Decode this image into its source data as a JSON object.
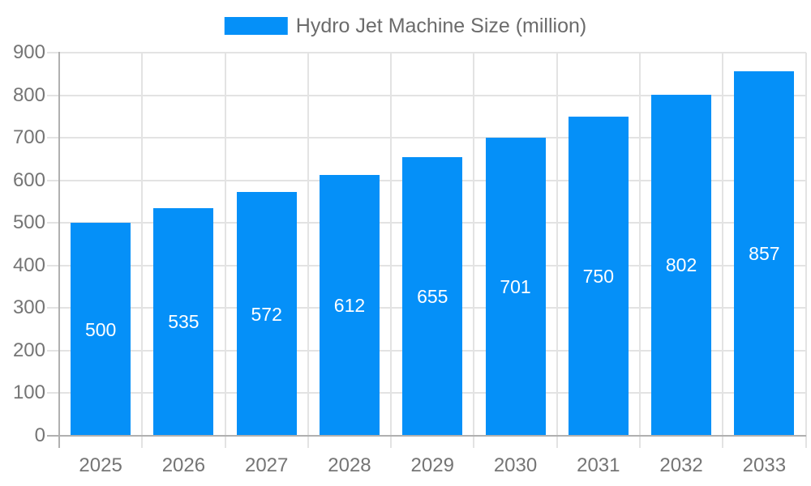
{
  "legend": {
    "label": "Hydro Jet Machine Size (million)"
  },
  "chart_data": {
    "type": "bar",
    "title": "Hydro Jet Machine Size (million)",
    "series_name": "Hydro Jet Machine Size (million)",
    "categories": [
      "2025",
      "2026",
      "2027",
      "2028",
      "2029",
      "2030",
      "2031",
      "2032",
      "2033"
    ],
    "values": [
      500,
      535,
      572,
      612,
      655,
      701,
      750,
      802,
      857
    ],
    "bar_value_labels": [
      "500",
      "535",
      "572",
      "612",
      "655",
      "701",
      "750",
      "802",
      "857"
    ],
    "xlabel": "",
    "ylabel": "",
    "ylim": [
      0,
      900
    ],
    "ytick_step": 100,
    "ytick_labels": [
      "0",
      "100",
      "200",
      "300",
      "400",
      "500",
      "600",
      "700",
      "800",
      "900"
    ],
    "grid": true,
    "legend_position": "top",
    "colors": {
      "bar": "#0590f8",
      "grid": "#e3e3e3",
      "axis": "#b0b0b0",
      "tick_text": "#757575",
      "legend_text": "#6b6b6b",
      "bar_label_text": "#ffffff",
      "background": "#ffffff"
    }
  }
}
